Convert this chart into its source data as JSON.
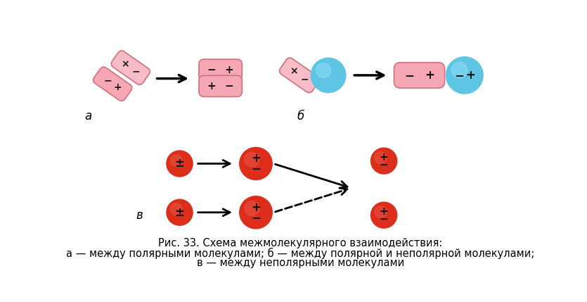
{
  "bg_color": "#ffffff",
  "caption_line1": "Рис. 33. Схема межмолекулярного взаимодействия:",
  "caption_line2": "а — между полярными молекулами; б — между полярной и неполярной молекулами;",
  "caption_line3": "в — между неполярными молекулами",
  "label_a": "а",
  "label_b": "б",
  "label_v": "в"
}
